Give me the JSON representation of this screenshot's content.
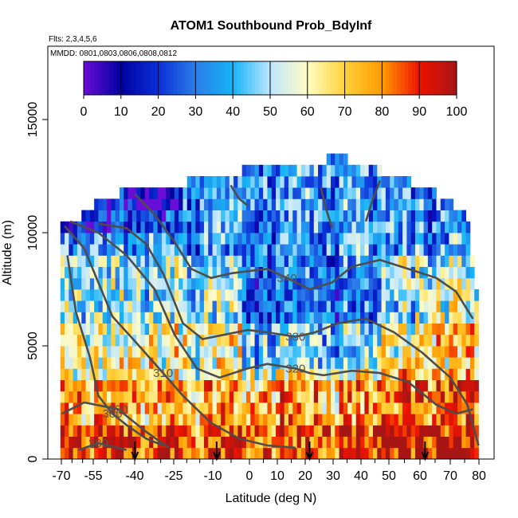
{
  "chart_data": {
    "type": "heatmap",
    "title": "ATOM1 Southbound Prob_BdyInf",
    "annotations": {
      "flights": "Flts: 2,3,4,5,6",
      "dates": "MMDD: 0801,0803,0806,0808,0812"
    },
    "xlabel": "Latitude (deg N)",
    "ylabel": "Altitude (m)",
    "xlim": [
      -70,
      82
    ],
    "ylim": [
      0,
      17500
    ],
    "xticks": [
      -70,
      -55,
      -40,
      -25,
      -10,
      0,
      10,
      20,
      30,
      40,
      50,
      60,
      70,
      80
    ],
    "xtick_labels": [
      "-70",
      "-55",
      "-40",
      "-25",
      "-10",
      "0",
      "10",
      "20",
      "30",
      "40",
      "50",
      "60",
      "70",
      "80"
    ],
    "yticks": [
      0,
      5000,
      10000,
      15000
    ],
    "ytick_labels": [
      "0",
      "5000",
      "10000",
      "15000"
    ],
    "colorbar": {
      "min": 0,
      "max": 100,
      "ticks": [
        0,
        10,
        20,
        30,
        40,
        50,
        60,
        70,
        80,
        90,
        100
      ],
      "tick_labels": [
        "0",
        "10",
        "20",
        "30",
        "40",
        "50",
        "60",
        "70",
        "80",
        "90",
        "100"
      ],
      "colors": [
        "#6a0dd9",
        "#0000a0",
        "#0b2fd8",
        "#2b7de9",
        "#14b4f5",
        "#bfe6ff",
        "#fffcc4",
        "#ffd23a",
        "#ff9b00",
        "#ee1200",
        "#a81515"
      ]
    },
    "grid": false,
    "heatmap_domain": {
      "lat_min": -68.5,
      "lat_max": 80,
      "lat_step": 1.5,
      "alt_step": 500,
      "top_altitude_by_lat": [
        [
          -68,
          10500
        ],
        [
          -62,
          10500
        ],
        [
          -58,
          11000
        ],
        [
          -48,
          11500
        ],
        [
          -45,
          12000
        ],
        [
          -35,
          12000
        ],
        [
          -25,
          12000
        ],
        [
          -20,
          12500
        ],
        [
          -10,
          12500
        ],
        [
          -5,
          12500
        ],
        [
          0,
          13000
        ],
        [
          15,
          13000
        ],
        [
          25,
          13000
        ],
        [
          27,
          13500
        ],
        [
          30,
          13500
        ],
        [
          33,
          13000
        ],
        [
          42,
          13000
        ],
        [
          45,
          12500
        ],
        [
          55,
          12000
        ],
        [
          65,
          11500
        ],
        [
          70,
          11000
        ],
        [
          75,
          10500
        ],
        [
          78,
          8000
        ],
        [
          80,
          6000
        ]
      ]
    },
    "contours": [
      {
        "label": "280",
        "points": [
          [
            -62,
            400
          ],
          [
            -55,
            700
          ],
          [
            -45,
            400
          ]
        ]
      },
      {
        "label": "290",
        "points": [
          [
            -68,
            2000
          ],
          [
            -60,
            2500
          ],
          [
            -48,
            2200
          ],
          [
            -38,
            1200
          ],
          [
            -30,
            500
          ]
        ]
      },
      {
        "label": "300",
        "points": [
          [
            -66,
            9000
          ],
          [
            -63,
            6500
          ],
          [
            -58,
            4500
          ],
          [
            -55,
            2800
          ],
          [
            -50,
            2000
          ],
          [
            -45,
            1500
          ],
          [
            -38,
            900
          ],
          [
            -32,
            600
          ]
        ]
      },
      {
        "label": "310",
        "points": [
          [
            -67,
            10300
          ],
          [
            -60,
            9300
          ],
          [
            -55,
            7800
          ],
          [
            -50,
            6300
          ],
          [
            -42,
            5200
          ],
          [
            -32,
            3800
          ],
          [
            -25,
            2800
          ],
          [
            -15,
            1600
          ],
          [
            -5,
            900
          ],
          [
            5,
            600
          ],
          [
            15,
            500
          ]
        ]
      },
      {
        "label": "320",
        "points": [
          [
            -65,
            10500
          ],
          [
            -55,
            10000
          ],
          [
            -45,
            9000
          ],
          [
            -35,
            7500
          ],
          [
            -28,
            5500
          ],
          [
            -20,
            4000
          ],
          [
            -12,
            3600
          ],
          [
            -2,
            4000
          ],
          [
            5,
            4200
          ],
          [
            15,
            4000
          ],
          [
            20,
            3800
          ],
          [
            25,
            3700
          ],
          [
            35,
            3900
          ],
          [
            45,
            3800
          ],
          [
            55,
            3400
          ],
          [
            65,
            2400
          ],
          [
            72,
            2000
          ],
          [
            78,
            2200
          ]
        ]
      },
      {
        "label": "330",
        "points": [
          [
            -55,
            10400
          ],
          [
            -45,
            10200
          ],
          [
            -38,
            9500
          ],
          [
            -32,
            8200
          ],
          [
            -25,
            6000
          ],
          [
            -18,
            5300
          ],
          [
            -10,
            5500
          ],
          [
            -2,
            5700
          ],
          [
            5,
            5600
          ],
          [
            15,
            5400
          ],
          [
            22,
            5600
          ],
          [
            30,
            6000
          ],
          [
            40,
            6200
          ],
          [
            50,
            5600
          ],
          [
            60,
            4700
          ],
          [
            70,
            3600
          ],
          [
            76,
            2400
          ],
          [
            80,
            600
          ]
        ]
      },
      {
        "label": "340",
        "points": [
          [
            -42,
            11700
          ],
          [
            -35,
            10800
          ],
          [
            -28,
            9600
          ],
          [
            -22,
            8400
          ],
          [
            -15,
            8000
          ],
          [
            -8,
            8200
          ],
          [
            -2,
            8300
          ],
          [
            5,
            8400
          ],
          [
            12,
            8000
          ],
          [
            20,
            7500
          ],
          [
            28,
            7800
          ],
          [
            35,
            8500
          ],
          [
            45,
            8800
          ],
          [
            55,
            8400
          ],
          [
            65,
            8000
          ],
          [
            72,
            7400
          ],
          [
            78,
            6200
          ]
        ]
      },
      {
        "label": "",
        "points": [
          [
            24,
            12000
          ],
          [
            26,
            11000
          ],
          [
            28,
            10200
          ]
        ]
      },
      {
        "label": "",
        "points": [
          [
            45,
            12300
          ],
          [
            42,
            11300
          ],
          [
            40,
            10500
          ]
        ]
      },
      {
        "label": "",
        "points": [
          [
            -8,
            12100
          ],
          [
            -5,
            11500
          ],
          [
            -2,
            11200
          ]
        ]
      }
    ],
    "profile_markers_lat": [
      -42,
      -13,
      20,
      61
    ]
  }
}
